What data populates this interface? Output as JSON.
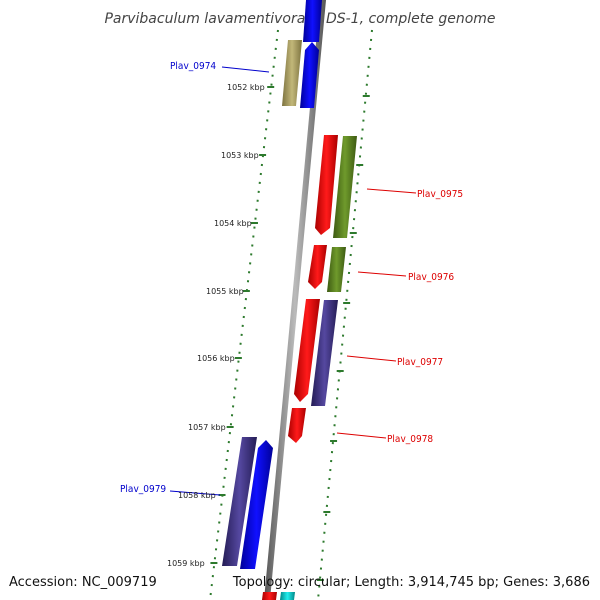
{
  "title": "Parvibaculum lavamentivorans DS-1, complete genome",
  "footer": {
    "accession": "Accession: NC_009719",
    "topology": "Topology: circular; Length: 3,914,745 bp; Genes: 3,686"
  },
  "ticks": [
    {
      "label": "1052 kbp"
    },
    {
      "label": "1053 kbp"
    },
    {
      "label": "1054 kbp"
    },
    {
      "label": "1055 kbp"
    },
    {
      "label": "1056 kbp"
    },
    {
      "label": "1057 kbp"
    },
    {
      "label": "1058 kbp"
    },
    {
      "label": "1059 kbp"
    }
  ],
  "gene_labels": [
    {
      "name": "Plav_0974",
      "color": "#0000cc"
    },
    {
      "name": "Plav_0975",
      "color": "#dd0000"
    },
    {
      "name": "Plav_0976",
      "color": "#dd0000"
    },
    {
      "name": "Plav_0977",
      "color": "#dd0000"
    },
    {
      "name": "Plav_0978",
      "color": "#dd0000"
    },
    {
      "name": "Plav_0979",
      "color": "#0000cc"
    }
  ],
  "colors": {
    "tick": "#2d7a2d",
    "axis": "#777777",
    "blue_gene": "#0000ff",
    "red_gene": "#ff0000",
    "olive_gene": "#6b8e23",
    "khaki_gene": "#b5a96a",
    "purple_gene": "#4b3f8f",
    "cyan_gene": "#00cccc"
  }
}
